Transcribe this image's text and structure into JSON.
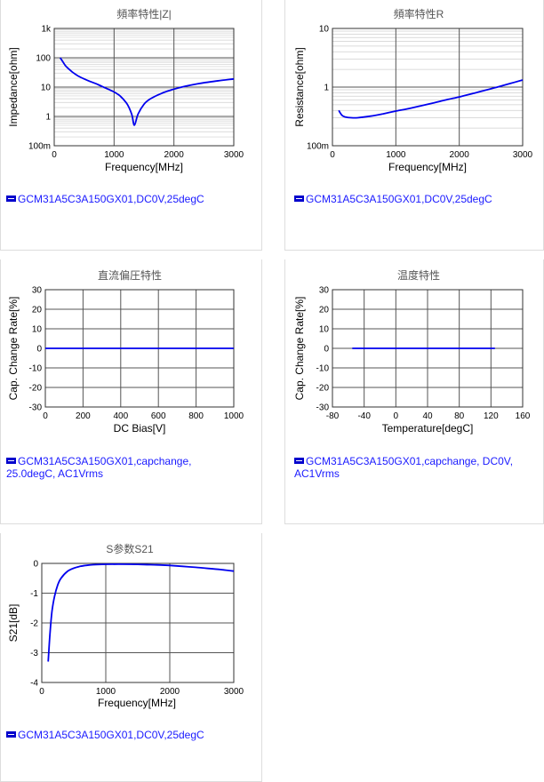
{
  "chart_data": [
    {
      "id": "c1",
      "type": "line",
      "title": "頻率特性|Z|",
      "xlabel": "Frequency[MHz]",
      "ylabel": "Impedance[ohm]",
      "xlim": [
        0,
        3000
      ],
      "ylim": [
        0.1,
        1000
      ],
      "yscale": "log",
      "xticks": [
        0,
        1000,
        2000,
        3000
      ],
      "xtick_labels": [
        "0",
        "1000",
        "2000",
        "3000"
      ],
      "yticks": [
        0.1,
        1,
        10,
        100,
        1000
      ],
      "ytick_labels": [
        "100m",
        "1",
        "10",
        "100",
        "1k"
      ],
      "grid": true,
      "color": "#0000ee",
      "legend": "GCM31A5C3A150GX01,DC0V,25degC",
      "series": [
        {
          "x": [
            100,
            150,
            200,
            300,
            400,
            500,
            600,
            700,
            800,
            900,
            1000,
            1100,
            1200,
            1250,
            1300,
            1340,
            1400,
            1500,
            1600,
            1800,
            2000,
            2200,
            2400,
            2600,
            2800,
            3000
          ],
          "y": [
            100,
            70,
            50,
            33,
            24,
            19,
            15.5,
            13,
            10.5,
            8.5,
            6.8,
            5,
            3,
            2,
            1.1,
            0.5,
            1.2,
            2.6,
            3.9,
            6.2,
            8.5,
            10.8,
            13,
            15,
            17,
            19
          ]
        }
      ]
    },
    {
      "id": "c2",
      "type": "line",
      "title": "頻率特性R",
      "xlabel": "Frequency[MHz]",
      "ylabel": "Resistance[ohm]",
      "xlim": [
        0,
        3000
      ],
      "ylim": [
        0.1,
        10
      ],
      "yscale": "log",
      "xticks": [
        0,
        1000,
        2000,
        3000
      ],
      "xtick_labels": [
        "0",
        "1000",
        "2000",
        "3000"
      ],
      "yticks": [
        0.1,
        1,
        10
      ],
      "ytick_labels": [
        "100m",
        "1",
        "10"
      ],
      "grid": true,
      "color": "#0000ee",
      "legend": "GCM31A5C3A150GX01,DC0V,25degC",
      "series": [
        {
          "x": [
            100,
            150,
            200,
            300,
            400,
            600,
            800,
            1000,
            1200,
            1400,
            1600,
            1800,
            2000,
            2200,
            2400,
            2600,
            2800,
            3000
          ],
          "y": [
            0.4,
            0.33,
            0.31,
            0.3,
            0.3,
            0.32,
            0.35,
            0.39,
            0.43,
            0.48,
            0.54,
            0.61,
            0.68,
            0.77,
            0.88,
            1.0,
            1.15,
            1.32
          ]
        }
      ]
    },
    {
      "id": "c3",
      "type": "line",
      "title": "直流偏圧特性",
      "xlabel": "DC Bias[V]",
      "ylabel": "Cap. Change Rate[%]",
      "xlim": [
        0,
        1000
      ],
      "ylim": [
        -30,
        30
      ],
      "yscale": "linear",
      "xticks": [
        0,
        200,
        400,
        600,
        800,
        1000
      ],
      "xtick_labels": [
        "0",
        "200",
        "400",
        "600",
        "800",
        "1000"
      ],
      "yticks": [
        -30,
        -20,
        -10,
        0,
        10,
        20,
        30
      ],
      "ytick_labels": [
        "-30",
        "-20",
        "-10",
        "0",
        "10",
        "20",
        "30"
      ],
      "grid": true,
      "color": "#0000ee",
      "legend": "GCM31A5C3A150GX01,capchange, 25.0degC, AC1Vrms",
      "series": [
        {
          "x": [
            0,
            250,
            500,
            750,
            1000
          ],
          "y": [
            0,
            0,
            0,
            0,
            0
          ]
        }
      ]
    },
    {
      "id": "c4",
      "type": "line",
      "title": "温度特性",
      "xlabel": "Temperature[degC]",
      "ylabel": "Cap. Change Rate[%]",
      "xlim": [
        -80,
        160
      ],
      "ylim": [
        -30,
        30
      ],
      "yscale": "linear",
      "xticks": [
        -80,
        -40,
        0,
        40,
        80,
        120,
        160
      ],
      "xtick_labels": [
        "-80",
        "-40",
        "0",
        "40",
        "80",
        "120",
        "160"
      ],
      "yticks": [
        -30,
        -20,
        -10,
        0,
        10,
        20,
        30
      ],
      "ytick_labels": [
        "-30",
        "-20",
        "-10",
        "0",
        "10",
        "20",
        "30"
      ],
      "grid": true,
      "color": "#0000ee",
      "legend": "GCM31A5C3A150GX01,capchange, DC0V, AC1Vrms",
      "series": [
        {
          "x": [
            -55,
            0,
            25,
            80,
            125
          ],
          "y": [
            0,
            0,
            0,
            0,
            0
          ]
        }
      ]
    },
    {
      "id": "c5",
      "type": "line",
      "title": "S参数S21",
      "xlabel": "Frequency[MHz]",
      "ylabel": "S21[dB]",
      "xlim": [
        0,
        3000
      ],
      "ylim": [
        -4,
        0
      ],
      "yscale": "linear",
      "xticks": [
        0,
        1000,
        2000,
        3000
      ],
      "xtick_labels": [
        "0",
        "1000",
        "2000",
        "3000"
      ],
      "yticks": [
        -4,
        -3,
        -2,
        -1,
        0
      ],
      "ytick_labels": [
        "-4",
        "-3",
        "-2",
        "-1",
        "0"
      ],
      "grid": true,
      "color": "#0000ee",
      "legend": "GCM31A5C3A150GX01,DC0V,25degC",
      "series": [
        {
          "x": [
            100,
            130,
            160,
            200,
            250,
            300,
            400,
            500,
            600,
            700,
            800,
            1000,
            1200,
            1400,
            1600,
            1800,
            2000,
            2200,
            2400,
            2600,
            2800,
            3000
          ],
          "y": [
            -3.3,
            -2.3,
            -1.6,
            -1.1,
            -0.72,
            -0.5,
            -0.27,
            -0.16,
            -0.1,
            -0.065,
            -0.045,
            -0.03,
            -0.028,
            -0.03,
            -0.04,
            -0.05,
            -0.07,
            -0.1,
            -0.13,
            -0.17,
            -0.21,
            -0.26
          ]
        }
      ]
    }
  ]
}
